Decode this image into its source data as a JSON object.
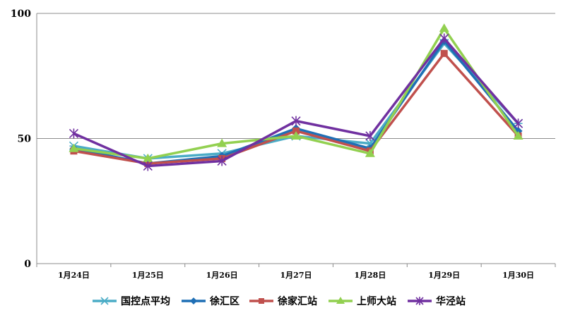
{
  "chart_data": {
    "type": "line",
    "categories": [
      "1月24日",
      "1月25日",
      "1月26日",
      "1月27日",
      "1月28日",
      "1月29日",
      "1月30日"
    ],
    "ylim": [
      0,
      100
    ],
    "yticks": [
      0,
      50,
      100
    ],
    "grid": true,
    "legend_position": "bottom",
    "series": [
      {
        "name": "国控点平均",
        "color": "#4bacc6",
        "marker": "asterisk",
        "values": [
          47,
          42,
          44,
          51,
          48,
          88,
          56
        ]
      },
      {
        "name": "徐汇区",
        "color": "#1f6fb5",
        "marker": "diamond",
        "values": [
          46,
          40,
          43,
          54,
          46,
          89,
          53
        ]
      },
      {
        "name": "徐家汇站",
        "color": "#c0504d",
        "marker": "square",
        "values": [
          45,
          40,
          42,
          53,
          45,
          84,
          51
        ]
      },
      {
        "name": "上师大站",
        "color": "#92d050",
        "marker": "triangle",
        "values": [
          46,
          42,
          48,
          51,
          44,
          94,
          51
        ]
      },
      {
        "name": "华泾站",
        "color": "#7030a0",
        "marker": "star",
        "values": [
          52,
          39,
          41,
          57,
          51,
          90,
          56
        ]
      }
    ]
  }
}
